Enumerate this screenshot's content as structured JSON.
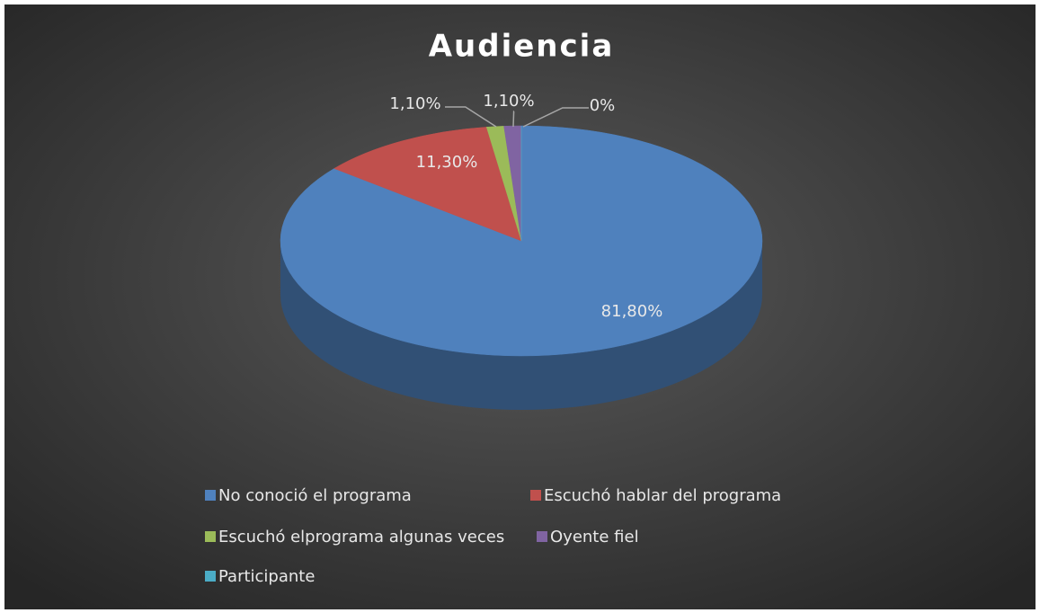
{
  "chart_data": {
    "type": "pie3d",
    "title": "Audiencia",
    "categories": [
      "No conoció el programa",
      "Escuchó hablar del programa",
      "Escuchó elprograma algunas veces",
      "Oyente fiel",
      "Participante"
    ],
    "values": [
      81.8,
      11.3,
      1.1,
      1.1,
      0
    ],
    "value_labels": [
      "81,80%",
      "11,30%",
      "1,10%",
      "1,10%",
      "0%"
    ],
    "colors": [
      "#4f81bd",
      "#c0504d",
      "#9bbb59",
      "#8064a2",
      "#4bacc6"
    ],
    "legend": "bottom"
  }
}
